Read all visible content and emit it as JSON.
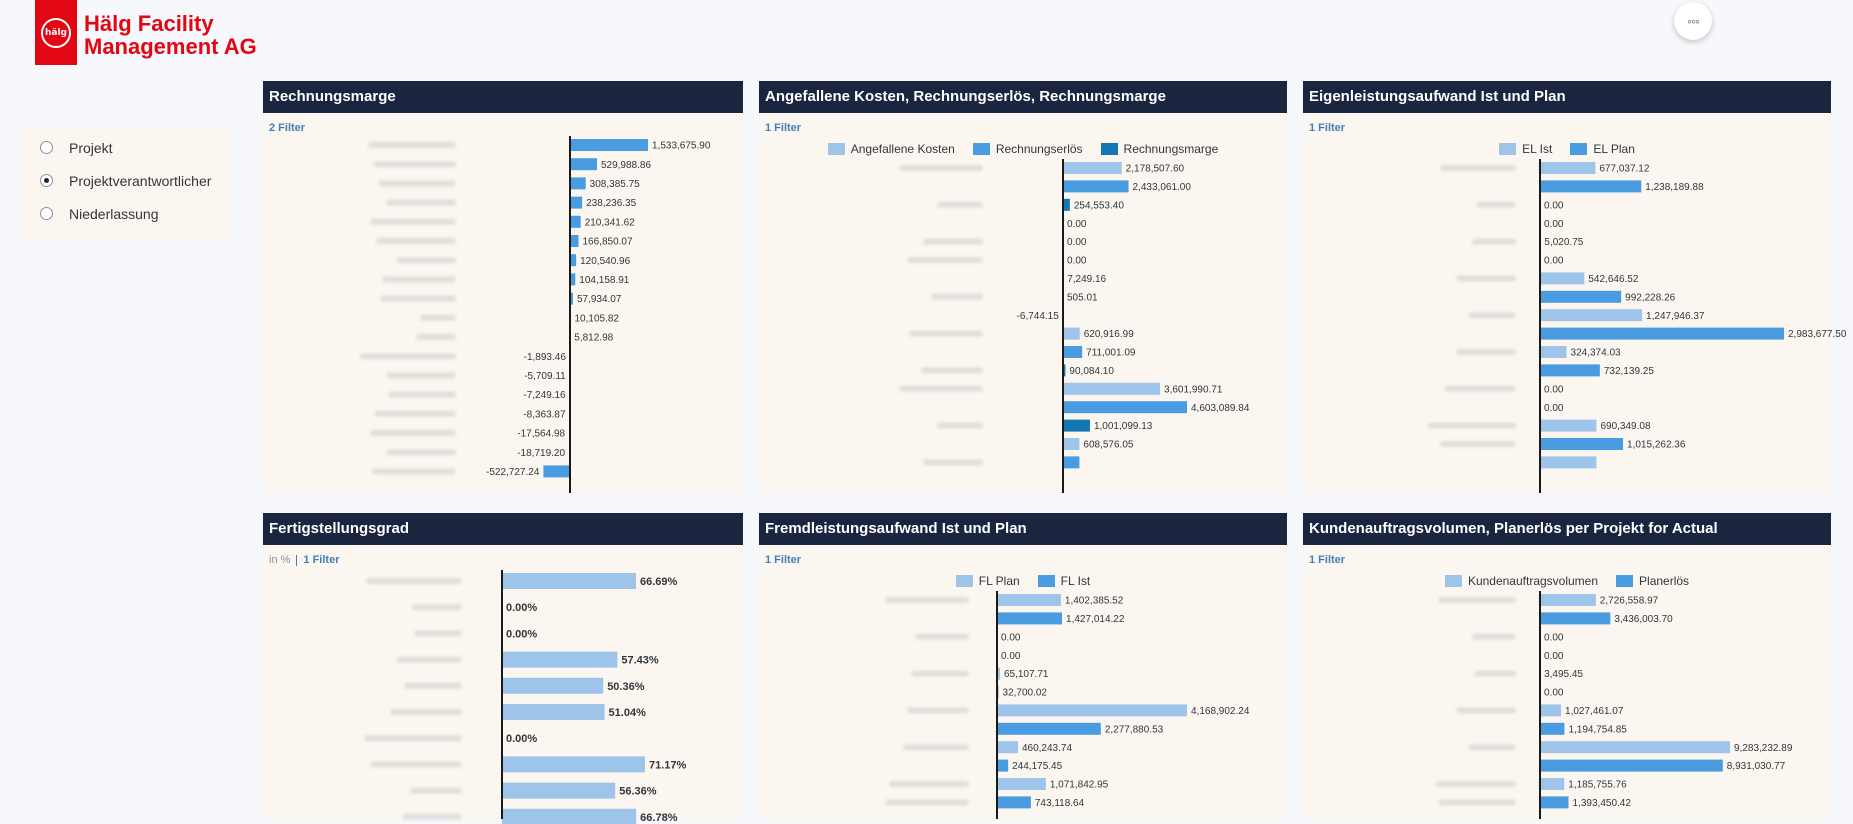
{
  "logo": {
    "line1": "Hälg Facility",
    "line2": "Management AG",
    "mark_text": "hälg"
  },
  "more_button": "◦◦◦",
  "radio_options": [
    {
      "label": "Projekt",
      "selected": false
    },
    {
      "label": "Projektverantwortlicher",
      "selected": true
    },
    {
      "label": "Niederlassung",
      "selected": false
    }
  ],
  "colors": {
    "light": "#9ec4ea",
    "mid": "#4a9be0",
    "dark": "#1277b3",
    "axis": "#1a1a1a",
    "header": "#1c2540"
  },
  "cards": [
    {
      "title": "Rechnungsmarge",
      "filter": "2 Filter",
      "unit": "",
      "chart_data": {
        "type": "bar",
        "orientation": "horizontal",
        "series": [
          {
            "name": "",
            "values": [
              1533675.9,
              529988.86,
              308385.75,
              238236.35,
              210341.62,
              166850.07,
              120540.96,
              104158.91,
              57934.07,
              10105.82,
              5812.98,
              -1893.46,
              -5709.11,
              -7249.16,
              -8363.87,
              -17564.98,
              -18719.2,
              -522727.24
            ]
          }
        ],
        "value_labels": [
          "1,533,675.90",
          "529,988.86",
          "308,385.75",
          "238,236.35",
          "210,341.62",
          "166,850.07",
          "120,540.96",
          "104,158.91",
          "57,934.07",
          "10,105.82",
          "5,812.98",
          "-1,893.46",
          "-5,709.11",
          "-7,249.16",
          "-8,363.87",
          "-17,564.98",
          "-18,719.20",
          "-522,727.24"
        ]
      }
    },
    {
      "title": "Angefallene Kosten, Rechnungserlös, Rechnungsmarge",
      "filter": "1 Filter",
      "unit": "",
      "legend": [
        {
          "label": "Angefallene Kosten",
          "color": "#9ec4ea"
        },
        {
          "label": "Rechnungserlös",
          "color": "#4a9be0"
        },
        {
          "label": "Rechnungsmarge",
          "color": "#1277b3"
        }
      ],
      "chart_data": {
        "type": "bar",
        "orientation": "horizontal",
        "series": [
          {
            "name": "Angefallene Kosten",
            "values": [
              2178507.6,
              0,
              7249.16,
              620916.99,
              3601990.71,
              608576.05
            ]
          },
          {
            "name": "Rechnungserlös",
            "values": [
              2433061.0,
              0,
              505.01,
              711001.09,
              4603089.84,
              608576.05
            ]
          },
          {
            "name": "Rechnungsmarge",
            "values": [
              254553.4,
              0,
              -6744.15,
              90084.1,
              1001099.13,
              null
            ]
          }
        ],
        "bars": [
          {
            "v": 2178507.6,
            "s": 0,
            "label": "2,178,507.60"
          },
          {
            "v": 2433061.0,
            "s": 1,
            "label": "2,433,061.00"
          },
          {
            "v": 254553.4,
            "s": 2,
            "label": "254,553.40"
          },
          {
            "v": 0,
            "s": 0,
            "label": "0.00"
          },
          {
            "v": 0,
            "s": 1,
            "label": "0.00"
          },
          {
            "v": 0,
            "s": 2,
            "label": "0.00"
          },
          {
            "v": 7249.16,
            "s": 0,
            "label": "7,249.16"
          },
          {
            "v": 505.01,
            "s": 1,
            "label": "505.01"
          },
          {
            "v": -6744.15,
            "s": 2,
            "label": "-6,744.15"
          },
          {
            "v": 620916.99,
            "s": 0,
            "label": "620,916.99"
          },
          {
            "v": 711001.09,
            "s": 1,
            "label": "711,001.09"
          },
          {
            "v": 90084.1,
            "s": 2,
            "label": "90,084.10"
          },
          {
            "v": 3601990.71,
            "s": 0,
            "label": "3,601,990.71"
          },
          {
            "v": 4603089.84,
            "s": 1,
            "label": "4,603,089.84"
          },
          {
            "v": 1001099.13,
            "s": 2,
            "label": "1,001,099.13"
          },
          {
            "v": 608576.05,
            "s": 0,
            "label": "608,576.05"
          },
          {
            "v": 608576.05,
            "s": 1,
            "label": ""
          }
        ]
      }
    },
    {
      "title": "Eigenleistungsaufwand Ist und Plan",
      "filter": "1 Filter",
      "unit": "",
      "legend": [
        {
          "label": "EL Ist",
          "color": "#9ec4ea"
        },
        {
          "label": "EL Plan",
          "color": "#4a9be0"
        }
      ],
      "chart_data": {
        "type": "bar",
        "orientation": "horizontal",
        "series": [
          {
            "name": "EL Ist",
            "values": [
              677037.12,
              0,
              5020.75,
              542646.52,
              1247946.37,
              324374.03,
              0,
              690349.08,
              690349.08
            ]
          },
          {
            "name": "EL Plan",
            "values": [
              1238189.88,
              0,
              0,
              992228.26,
              2983677.5,
              732139.25,
              0,
              1015262.36
            ]
          }
        ],
        "bars": [
          {
            "v": 677037.12,
            "s": 0,
            "label": "677,037.12"
          },
          {
            "v": 1238189.88,
            "s": 1,
            "label": "1,238,189.88"
          },
          {
            "v": 0,
            "s": 0,
            "label": "0.00"
          },
          {
            "v": 0,
            "s": 1,
            "label": "0.00"
          },
          {
            "v": 5020.75,
            "s": 0,
            "label": "5,020.75"
          },
          {
            "v": 0,
            "s": 1,
            "label": "0.00"
          },
          {
            "v": 542646.52,
            "s": 0,
            "label": "542,646.52"
          },
          {
            "v": 992228.26,
            "s": 1,
            "label": "992,228.26"
          },
          {
            "v": 1247946.37,
            "s": 0,
            "label": "1,247,946.37"
          },
          {
            "v": 2983677.5,
            "s": 1,
            "label": "2,983,677.50"
          },
          {
            "v": 324374.03,
            "s": 0,
            "label": "324,374.03"
          },
          {
            "v": 732139.25,
            "s": 1,
            "label": "732,139.25"
          },
          {
            "v": 0,
            "s": 0,
            "label": "0.00"
          },
          {
            "v": 0,
            "s": 1,
            "label": "0.00"
          },
          {
            "v": 690349.08,
            "s": 0,
            "label": "690,349.08"
          },
          {
            "v": 1015262.36,
            "s": 1,
            "label": "1,015,262.36"
          },
          {
            "v": 690349.08,
            "s": 0,
            "label": ""
          }
        ]
      }
    },
    {
      "title": "Fertigstellungsgrad",
      "filter": "1 Filter",
      "unit": "in %",
      "chart_data": {
        "type": "bar",
        "orientation": "horizontal",
        "series": [
          {
            "name": "",
            "values": [
              66.69,
              0.0,
              0.0,
              57.43,
              50.36,
              51.04,
              0.0,
              71.17,
              56.36,
              66.78
            ]
          }
        ],
        "value_labels": [
          "66.69%",
          "0.00%",
          "0.00%",
          "57.43%",
          "50.36%",
          "51.04%",
          "0.00%",
          "71.17%",
          "56.36%",
          "66.78%"
        ]
      }
    },
    {
      "title": "Fremdleistungsaufwand Ist und Plan",
      "filter": "1 Filter",
      "unit": "",
      "legend": [
        {
          "label": "FL Plan",
          "color": "#9ec4ea"
        },
        {
          "label": "FL Ist",
          "color": "#4a9be0"
        }
      ],
      "chart_data": {
        "type": "bar",
        "orientation": "horizontal",
        "series": [
          {
            "name": "FL Plan",
            "values": [
              1402385.52,
              0,
              65107.71,
              4168902.24,
              460243.74,
              1071842.95
            ]
          },
          {
            "name": "FL Ist",
            "values": [
              1427014.22,
              0,
              32700.02,
              2277880.53,
              244175.45,
              743118.64
            ]
          }
        ],
        "bars": [
          {
            "v": 1402385.52,
            "s": 0,
            "label": "1,402,385.52"
          },
          {
            "v": 1427014.22,
            "s": 1,
            "label": "1,427,014.22"
          },
          {
            "v": 0,
            "s": 0,
            "label": "0.00"
          },
          {
            "v": 0,
            "s": 1,
            "label": "0.00"
          },
          {
            "v": 65107.71,
            "s": 0,
            "label": "65,107.71"
          },
          {
            "v": 32700.02,
            "s": 1,
            "label": "32,700.02"
          },
          {
            "v": 4168902.24,
            "s": 0,
            "label": "4,168,902.24"
          },
          {
            "v": 2277880.53,
            "s": 1,
            "label": "2,277,880.53"
          },
          {
            "v": 460243.74,
            "s": 0,
            "label": "460,243.74"
          },
          {
            "v": 244175.45,
            "s": 1,
            "label": "244,175.45"
          },
          {
            "v": 1071842.95,
            "s": 0,
            "label": "1,071,842.95"
          },
          {
            "v": 743118.64,
            "s": 1,
            "label": "743,118.64"
          }
        ]
      }
    },
    {
      "title": "Kundenauftragsvolumen, Planerlös per Projekt for Actual",
      "filter": "1 Filter",
      "unit": "",
      "legend": [
        {
          "label": "Kundenauftragsvolumen",
          "color": "#9ec4ea"
        },
        {
          "label": "Planerlös",
          "color": "#4a9be0"
        }
      ],
      "chart_data": {
        "type": "bar",
        "orientation": "horizontal",
        "series": [
          {
            "name": "Kundenauftragsvolumen",
            "values": [
              2726558.97,
              0,
              3495.45,
              1027461.07,
              9283232.89,
              1185755.76
            ]
          },
          {
            "name": "Planerlös",
            "values": [
              3436003.7,
              0,
              0,
              1194754.85,
              8931030.77,
              1393450.42
            ]
          }
        ],
        "bars": [
          {
            "v": 2726558.97,
            "s": 0,
            "label": "2,726,558.97"
          },
          {
            "v": 3436003.7,
            "s": 1,
            "label": "3,436,003.70"
          },
          {
            "v": 0,
            "s": 0,
            "label": "0.00"
          },
          {
            "v": 0,
            "s": 1,
            "label": "0.00"
          },
          {
            "v": 3495.45,
            "s": 0,
            "label": "3,495.45"
          },
          {
            "v": 0,
            "s": 1,
            "label": "0.00"
          },
          {
            "v": 1027461.07,
            "s": 0,
            "label": "1,027,461.07"
          },
          {
            "v": 1194754.85,
            "s": 1,
            "label": "1,194,754.85"
          },
          {
            "v": 9283232.89,
            "s": 0,
            "label": "9,283,232.89"
          },
          {
            "v": 8931030.77,
            "s": 1,
            "label": "8,931,030.77"
          },
          {
            "v": 1185755.76,
            "s": 0,
            "label": "1,185,755.76"
          },
          {
            "v": 1393450.42,
            "s": 1,
            "label": "1,393,450.42"
          }
        ]
      }
    }
  ]
}
